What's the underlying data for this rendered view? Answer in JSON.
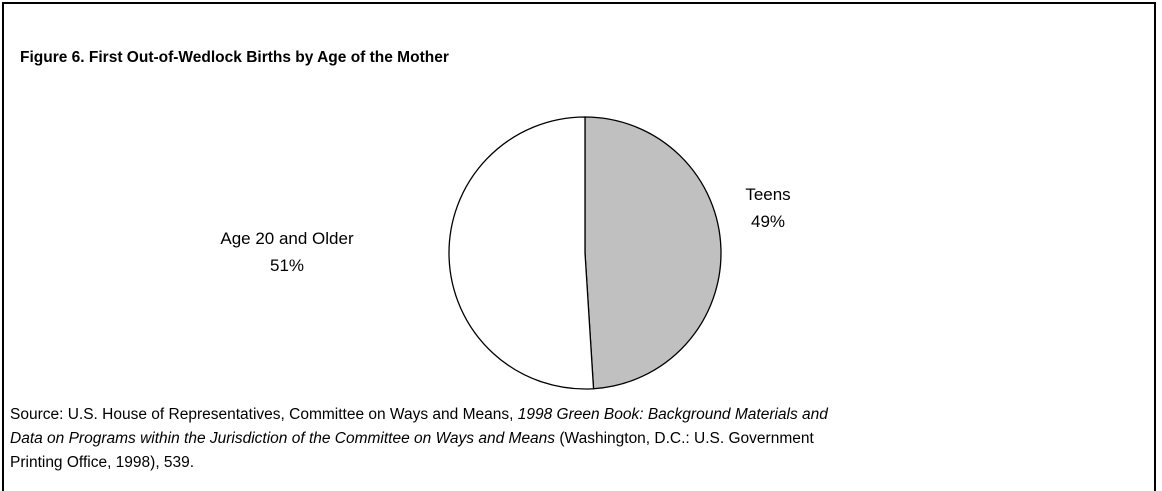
{
  "chart_data": {
    "type": "pie",
    "title": "Figure 6.  First Out-of-Wedlock Births by Age of the Mother",
    "categories": [
      "Teens",
      "Age 20  and Older"
    ],
    "values": [
      49,
      51
    ],
    "value_labels": [
      "49%",
      "51%"
    ],
    "colors": [
      "#c0c0c0",
      "#ffffff"
    ],
    "source": [
      "Source:  U.S. House of Representatives, Committee on Ways and Means, ",
      "1998 Green Book: Background Materials and Data on Programs within the Jurisdiction of the Committee on Ways and Means",
      " (Washington, D.C.: U.S. Government Printing Office, 1998), 539."
    ]
  }
}
